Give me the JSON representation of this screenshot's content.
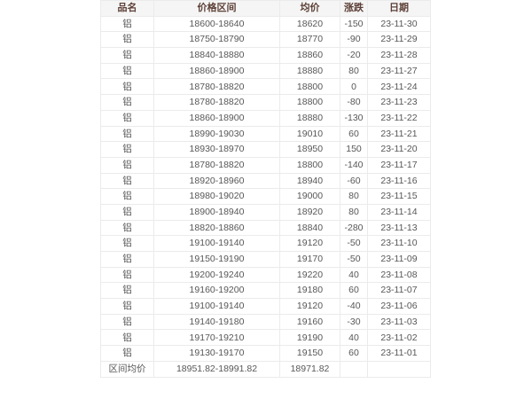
{
  "style": {
    "page_background": "#ffffff",
    "header_background": "#f5f5f5",
    "header_text_color": "#5d4037",
    "body_text_color": "#575757",
    "border_color": "#ebebeb"
  },
  "chart_data": {
    "type": "table",
    "columns": [
      "品名",
      "价格区间",
      "均价",
      "涨跌",
      "日期"
    ],
    "rows": [
      [
        "铝",
        "18600-18640",
        "18620",
        "-150",
        "23-11-30"
      ],
      [
        "铝",
        "18750-18790",
        "18770",
        "-90",
        "23-11-29"
      ],
      [
        "铝",
        "18840-18880",
        "18860",
        "-20",
        "23-11-28"
      ],
      [
        "铝",
        "18860-18900",
        "18880",
        "80",
        "23-11-27"
      ],
      [
        "铝",
        "18780-18820",
        "18800",
        "0",
        "23-11-24"
      ],
      [
        "铝",
        "18780-18820",
        "18800",
        "-80",
        "23-11-23"
      ],
      [
        "铝",
        "18860-18900",
        "18880",
        "-130",
        "23-11-22"
      ],
      [
        "铝",
        "18990-19030",
        "19010",
        "60",
        "23-11-21"
      ],
      [
        "铝",
        "18930-18970",
        "18950",
        "150",
        "23-11-20"
      ],
      [
        "铝",
        "18780-18820",
        "18800",
        "-140",
        "23-11-17"
      ],
      [
        "铝",
        "18920-18960",
        "18940",
        "-60",
        "23-11-16"
      ],
      [
        "铝",
        "18980-19020",
        "19000",
        "80",
        "23-11-15"
      ],
      [
        "铝",
        "18900-18940",
        "18920",
        "80",
        "23-11-14"
      ],
      [
        "铝",
        "18820-18860",
        "18840",
        "-280",
        "23-11-13"
      ],
      [
        "铝",
        "19100-19140",
        "19120",
        "-50",
        "23-11-10"
      ],
      [
        "铝",
        "19150-19190",
        "19170",
        "-50",
        "23-11-09"
      ],
      [
        "铝",
        "19200-19240",
        "19220",
        "40",
        "23-11-08"
      ],
      [
        "铝",
        "19160-19200",
        "19180",
        "60",
        "23-11-07"
      ],
      [
        "铝",
        "19100-19140",
        "19120",
        "-40",
        "23-11-06"
      ],
      [
        "铝",
        "19140-19180",
        "19160",
        "-30",
        "23-11-03"
      ],
      [
        "铝",
        "19170-19210",
        "19190",
        "40",
        "23-11-02"
      ],
      [
        "铝",
        "19130-19170",
        "19150",
        "60",
        "23-11-01"
      ]
    ],
    "summary_row": [
      "区间均价",
      "18951.82-18991.82",
      "18971.82",
      "",
      ""
    ]
  }
}
